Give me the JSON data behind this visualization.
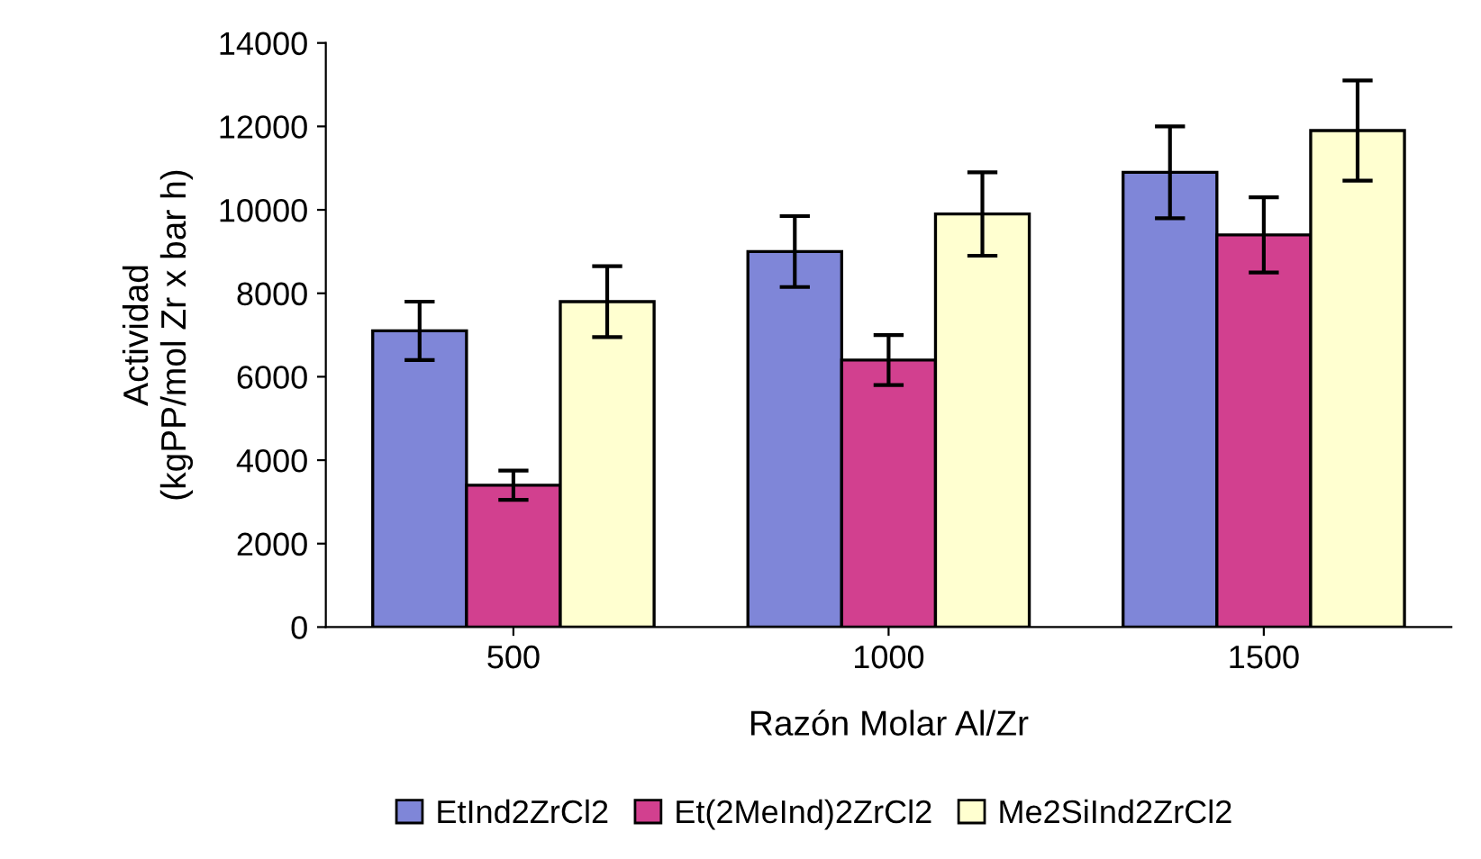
{
  "chart_data": {
    "type": "bar",
    "xlabel": "Razón Molar Al/Zr",
    "ylabel": "Actividad\n(kgPP/mol Zr x bar h)",
    "categories": [
      "500",
      "1000",
      "1500"
    ],
    "series": [
      {
        "name": "EtInd2ZrCl2",
        "color": "#7f86d8",
        "values": [
          7100,
          9000,
          10900
        ],
        "errors": [
          700,
          850,
          1100
        ]
      },
      {
        "name": "Et(2MeInd)2ZrCl2",
        "color": "#d2408f",
        "values": [
          3400,
          6400,
          9400
        ],
        "errors": [
          350,
          600,
          900
        ]
      },
      {
        "name": "Me2SiInd2ZrCl2",
        "color": "#ffffd0",
        "values": [
          7800,
          9900,
          11900
        ],
        "errors": [
          850,
          1000,
          1200
        ]
      }
    ],
    "ylim": [
      0,
      14000
    ],
    "yticks": [
      0,
      2000,
      4000,
      6000,
      8000,
      10000,
      12000,
      14000
    ],
    "grid": false,
    "legend": "bottom"
  }
}
